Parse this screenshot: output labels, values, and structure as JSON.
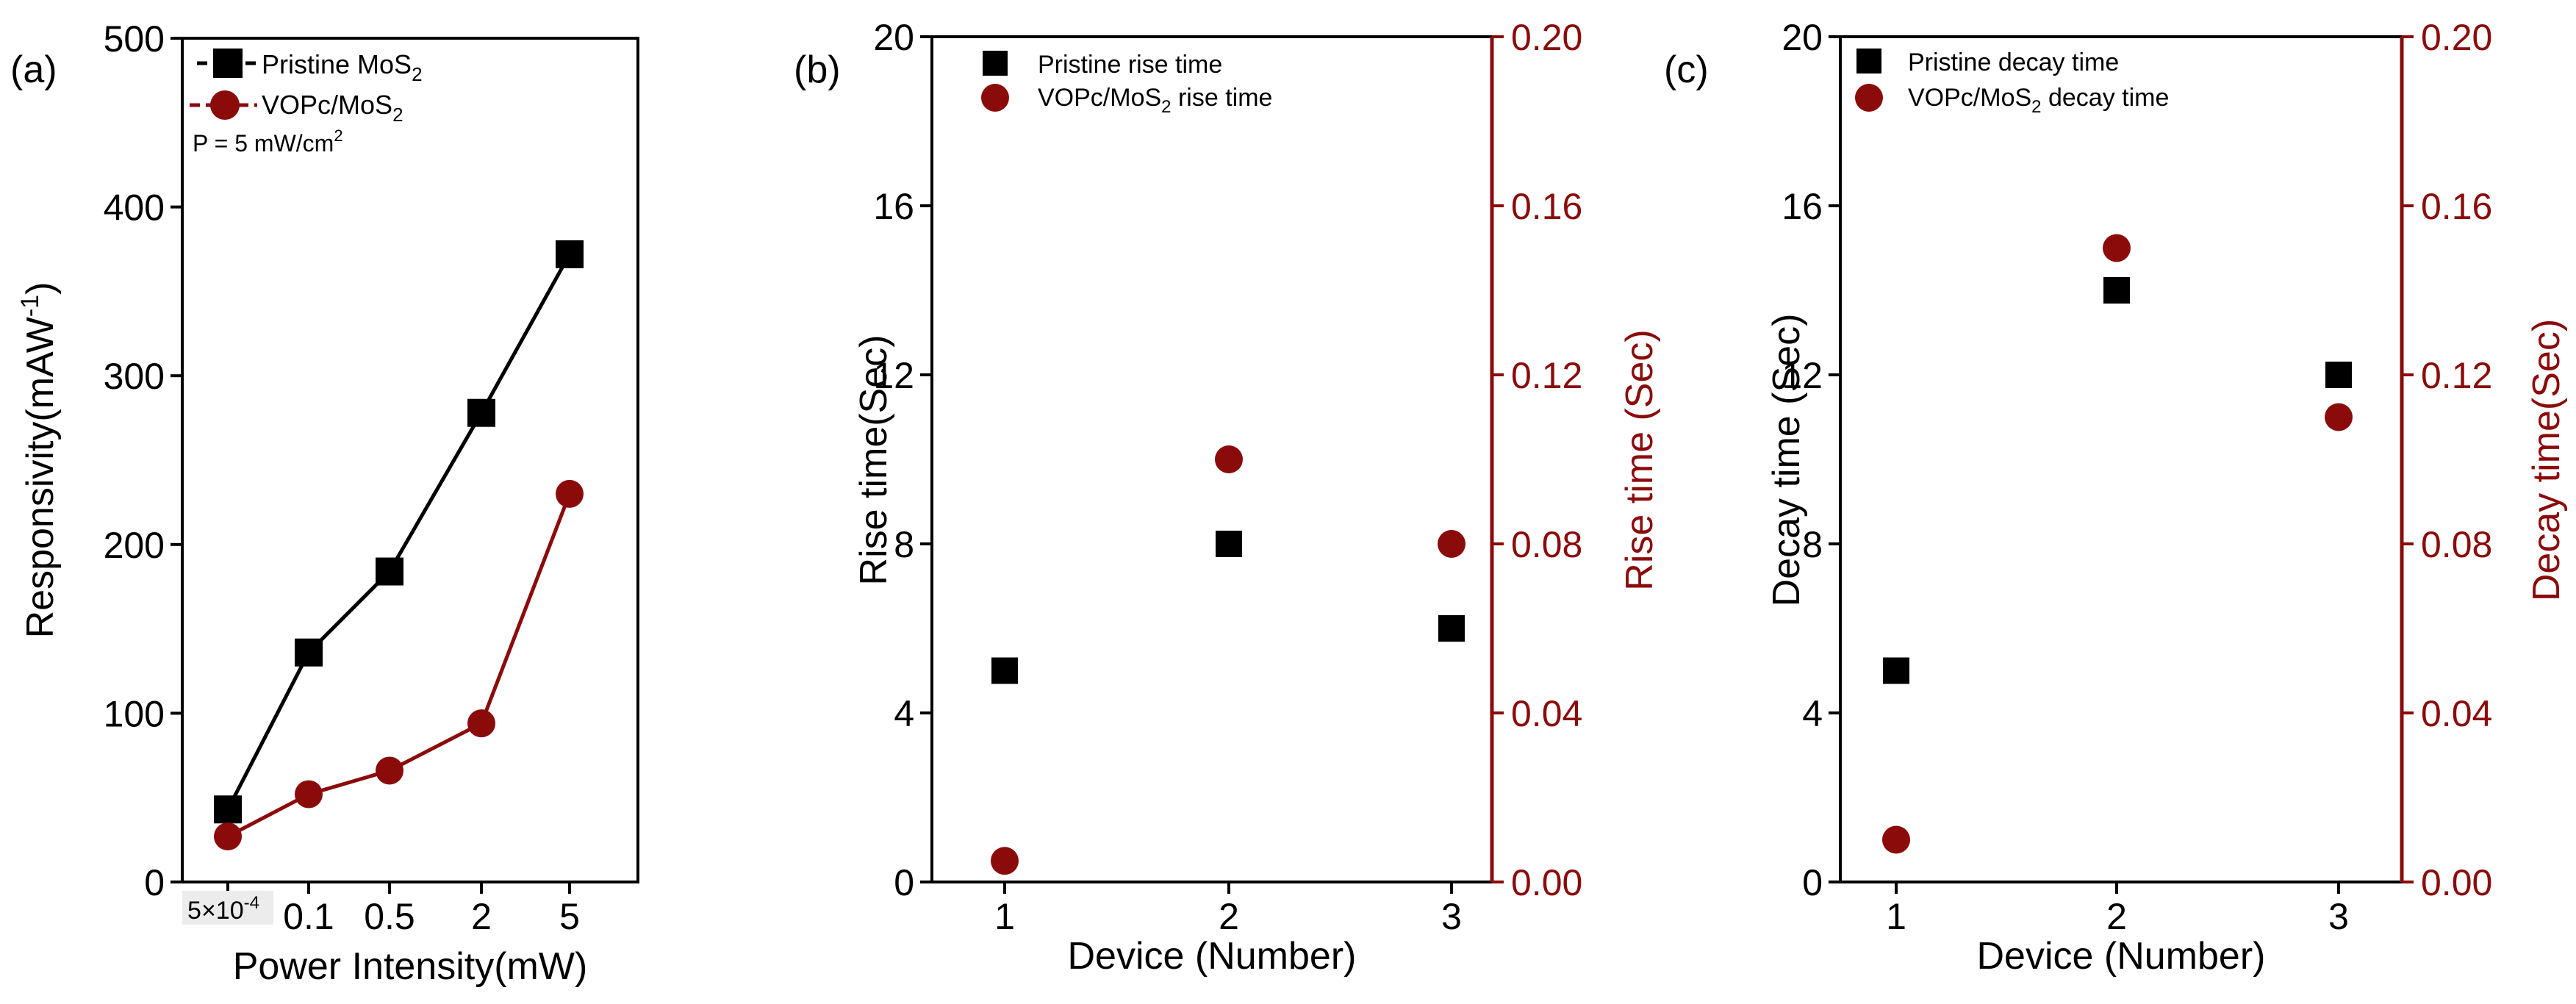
{
  "colors": {
    "black": "#000000",
    "red": "#8b0b0b",
    "axis": "#000000"
  },
  "chart_data": [
    {
      "panel_label": "(a)",
      "type": "line",
      "xlabel": "Power Intensity(mW)",
      "ylabel": "Responsivity(mAW",
      "ylabel_sup": "-1",
      "ylabel_end": ")",
      "categories": [
        "5×10",
        "0.1",
        "0.5",
        "2",
        "5"
      ],
      "first_category_sup": "-4",
      "ylim": [
        0,
        500
      ],
      "yticks": [
        "0",
        "100",
        "200",
        "300",
        "400",
        "500"
      ],
      "series": [
        {
          "name_main": "Pristine MoS",
          "name_sub": "2",
          "marker": "square",
          "color": "#000000",
          "values": [
            43,
            136,
            184,
            278,
            372
          ]
        },
        {
          "name_main": "VOPc/MoS",
          "name_sub": "2",
          "marker": "circle",
          "color": "#8b0b0b",
          "values": [
            27,
            52,
            66,
            94,
            230
          ]
        }
      ],
      "annotation_main": "P = 5 mW/cm",
      "annotation_sup": "2"
    },
    {
      "panel_label": "(b)",
      "type": "scatter",
      "xlabel": "Device (Number)",
      "ylabel_left": "Rise time(Sec)",
      "ylabel_right": "Rise time (Sec)",
      "xticks": [
        "1",
        "2",
        "3"
      ],
      "x": [
        1,
        2,
        3
      ],
      "ylim_left": [
        0,
        20
      ],
      "ylim_right": [
        0,
        0.2
      ],
      "yticks_left": [
        "0",
        "4",
        "8",
        "12",
        "16",
        "20"
      ],
      "yticks_right": [
        "0.00",
        "0.04",
        "0.08",
        "0.12",
        "0.16",
        "0.20"
      ],
      "series": [
        {
          "name": "Pristine rise time",
          "marker": "square",
          "color": "#000000",
          "axis": "left",
          "values": [
            5,
            8,
            6
          ]
        },
        {
          "name_main": "VOPc/MoS",
          "name_sub": "2",
          "name_end": " rise time",
          "marker": "circle",
          "color": "#8b0b0b",
          "axis": "right",
          "values": [
            0.005,
            0.1,
            0.08
          ]
        }
      ]
    },
    {
      "panel_label": "(c)",
      "type": "scatter",
      "xlabel": "Device (Number)",
      "ylabel_left": "Decay time (Sec)",
      "ylabel_right": "Decay time(Sec)",
      "xticks": [
        "1",
        "2",
        "3"
      ],
      "x": [
        1,
        2,
        3
      ],
      "ylim_left": [
        0,
        20
      ],
      "ylim_right": [
        0,
        0.2
      ],
      "yticks_left": [
        "0",
        "4",
        "8",
        "12",
        "16",
        "20"
      ],
      "yticks_right": [
        "0.00",
        "0.04",
        "0.08",
        "0.12",
        "0.16",
        "0.20"
      ],
      "series": [
        {
          "name": "Pristine decay time",
          "marker": "square",
          "color": "#000000",
          "axis": "left",
          "values": [
            5,
            14,
            12
          ]
        },
        {
          "name_main": "VOPc/MoS",
          "name_sub": "2",
          "name_end": " decay time",
          "marker": "circle",
          "color": "#8b0b0b",
          "axis": "right",
          "values": [
            0.01,
            0.15,
            0.11
          ]
        }
      ]
    }
  ]
}
